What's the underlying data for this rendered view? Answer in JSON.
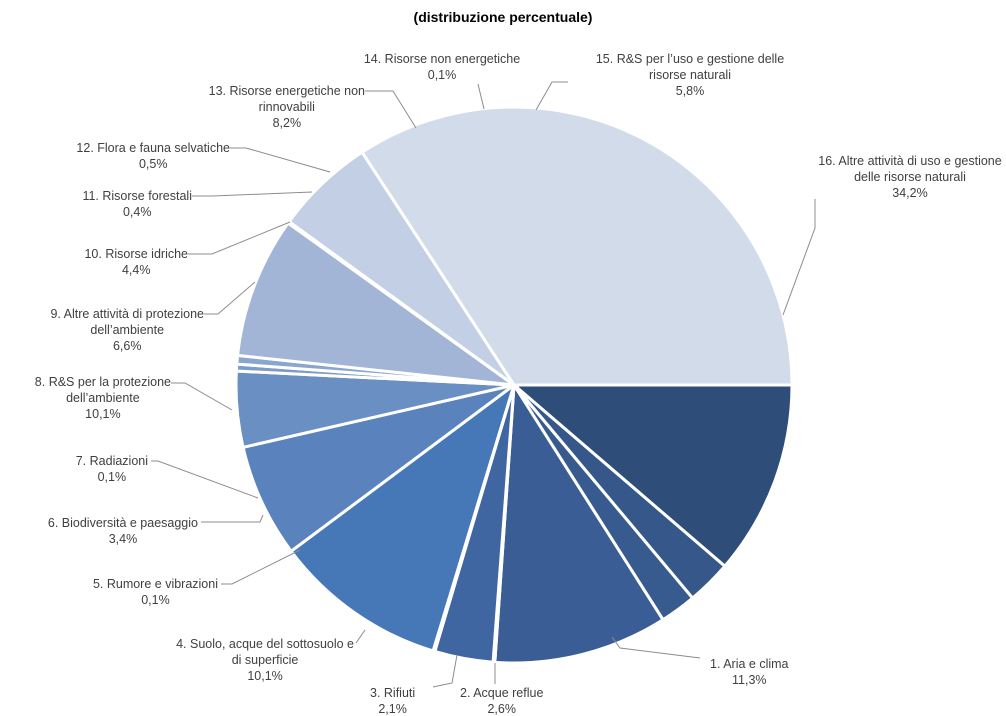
{
  "chart_data": {
    "type": "pie",
    "title": "(distribuzione percentuale)",
    "direction": "clockwise from 90° (right of center), ordered 1..16",
    "slices": [
      {
        "label": "1. Aria e clima",
        "value_text": "11,3%",
        "value": 11.3,
        "color": "#2f4d79"
      },
      {
        "label": "2. Acque reflue",
        "value_text": "2,6%",
        "value": 2.6,
        "color": "#355789"
      },
      {
        "label": "3. Rifiuti",
        "value_text": "2,1%",
        "value": 2.1,
        "color": "#375a8f"
      },
      {
        "label": "4. Suolo, acque del sottosuolo e di superficie",
        "value_text": "10,1%",
        "value": 10.1,
        "color": "#395d94"
      },
      {
        "label": "5. Rumore e vibrazioni",
        "value_text": "0,1%",
        "value": 0.1,
        "color": "#3b6198"
      },
      {
        "label": "6. Biodiversità e paesaggio",
        "value_text": "3,4%",
        "value": 3.4,
        "color": "#3f66a1"
      },
      {
        "label": "7. Radiazioni",
        "value_text": "0,1%",
        "value": 0.1,
        "color": "#4370ae"
      },
      {
        "label": "8. R&S per la protezione dell’ambiente",
        "value_text": "10,1%",
        "value": 10.1,
        "color": "#4677b7"
      },
      {
        "label": "9. Altre attività di protezione dell’ambiente",
        "value_text": "6,6%",
        "value": 6.6,
        "color": "#5a83bd"
      },
      {
        "label": "10. Risorse idriche",
        "value_text": "4,4%",
        "value": 4.4,
        "color": "#6a8fc3"
      },
      {
        "label": "11. Risorse forestali",
        "value_text": "0,4%",
        "value": 0.4,
        "color": "#7b9bc8"
      },
      {
        "label": "12. Flora e fauna selvatiche",
        "value_text": "0,5%",
        "value": 0.5,
        "color": "#8aa6cf"
      },
      {
        "label": "13. Risorse energetiche non rinnovabili",
        "value_text": "8,2%",
        "value": 8.2,
        "color": "#a2b5d6"
      },
      {
        "label": "14. Risorse non energetiche",
        "value_text": "0,1%",
        "value": 0.1,
        "color": "#b4c3de"
      },
      {
        "label": "15. R&S per l’uso e gestione delle risorse naturali",
        "value_text": "5,8%",
        "value": 5.8,
        "color": "#c3cfe4"
      },
      {
        "label": "16. Altre attività di uso e gestione delle risorse naturali",
        "value_text": "34,2%",
        "value": 34.2,
        "color": "#d2dbea"
      }
    ],
    "labels": [
      {
        "lines": [
          "1. Aria e clima",
          "11,3%"
        ]
      },
      {
        "lines": [
          "2. Acque reflue",
          "2,6%"
        ]
      },
      {
        "lines": [
          "3. Rifiuti",
          "2,1%"
        ]
      },
      {
        "lines": [
          "4. Suolo, acque del sottosuolo e",
          "di superficie",
          "10,1%"
        ]
      },
      {
        "lines": [
          "5. Rumore e vibrazioni",
          "0,1%"
        ]
      },
      {
        "lines": [
          "6. Biodiversità e paesaggio",
          "3,4%"
        ]
      },
      {
        "lines": [
          "7. Radiazioni",
          "0,1%"
        ]
      },
      {
        "lines": [
          "8. R&S per la protezione",
          "dell’ambiente",
          "10,1%"
        ]
      },
      {
        "lines": [
          "9. Altre attività di protezione",
          "dell’ambiente",
          "6,6%"
        ]
      },
      {
        "lines": [
          "10. Risorse idriche",
          "4,4%"
        ]
      },
      {
        "lines": [
          "11. Risorse forestali",
          "0,4%"
        ]
      },
      {
        "lines": [
          "12. Flora e fauna selvatiche",
          "0,5%"
        ]
      },
      {
        "lines": [
          "13. Risorse energetiche non",
          "rinnovabili",
          "8,2%"
        ]
      },
      {
        "lines": [
          "14. Risorse non energetiche",
          "0,1%"
        ]
      },
      {
        "lines": [
          "15. R&S per l’uso e gestione delle",
          "risorse naturali",
          "5,8%"
        ]
      },
      {
        "lines": [
          "16. Altre attività di uso e gestione",
          "delle risorse naturali",
          "34,2%"
        ]
      }
    ],
    "legend": "none"
  }
}
